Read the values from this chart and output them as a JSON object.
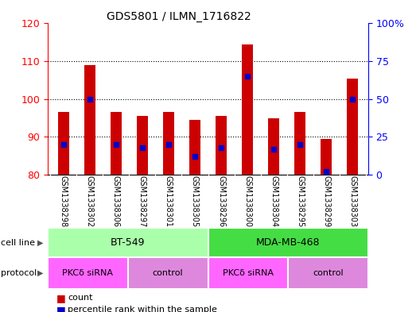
{
  "title": "GDS5801 / ILMN_1716822",
  "samples": [
    "GSM1338298",
    "GSM1338302",
    "GSM1338306",
    "GSM1338297",
    "GSM1338301",
    "GSM1338305",
    "GSM1338296",
    "GSM1338300",
    "GSM1338304",
    "GSM1338295",
    "GSM1338299",
    "GSM1338303"
  ],
  "counts": [
    96.5,
    109.0,
    96.5,
    95.5,
    96.5,
    94.5,
    95.5,
    114.5,
    95.0,
    96.5,
    89.5,
    105.5
  ],
  "percentile_ranks": [
    20,
    50,
    20,
    18,
    20,
    12,
    18,
    65,
    17,
    20,
    2,
    50
  ],
  "ylim_left": [
    80,
    120
  ],
  "ylim_right": [
    0,
    100
  ],
  "yticks_left": [
    80,
    90,
    100,
    110,
    120
  ],
  "yticks_right": [
    0,
    25,
    50,
    75,
    100
  ],
  "cell_line_groups": [
    {
      "label": "BT-549",
      "start": 0,
      "end": 6,
      "color": "#aaffaa"
    },
    {
      "label": "MDA-MB-468",
      "start": 6,
      "end": 12,
      "color": "#44dd44"
    }
  ],
  "protocol_groups": [
    {
      "label": "PKCδ siRNA",
      "start": 0,
      "end": 3,
      "color": "#ff66ff"
    },
    {
      "label": "control",
      "start": 3,
      "end": 6,
      "color": "#dd88dd"
    },
    {
      "label": "PKCδ siRNA",
      "start": 6,
      "end": 9,
      "color": "#ff66ff"
    },
    {
      "label": "control",
      "start": 9,
      "end": 12,
      "color": "#dd88dd"
    }
  ],
  "bar_color": "#cc0000",
  "dot_color": "#0000cc",
  "bar_width": 0.45,
  "background_color": "#ffffff",
  "plot_bg_color": "#ffffff",
  "sample_bg_color": "#cccccc",
  "grid_color": "#000000"
}
